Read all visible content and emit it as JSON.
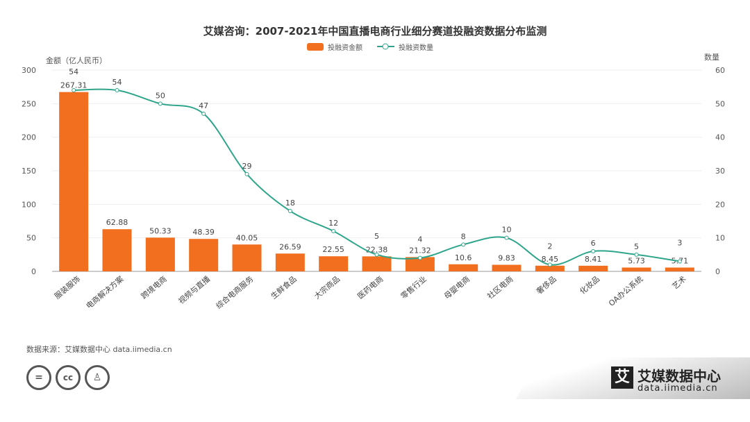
{
  "chart_data": {
    "type": "bar+line",
    "title": "艾媒咨询：2007-2021年中国直播电商行业细分赛道投融资数据分布监测",
    "ylabel": "金额（亿人民币）",
    "y2label": "数量",
    "ylim": [
      0,
      300
    ],
    "y2lim": [
      0,
      60
    ],
    "yticks": [
      0,
      50,
      100,
      150,
      200,
      250,
      300
    ],
    "y2ticks": [
      0,
      10,
      20,
      30,
      40,
      50,
      60
    ],
    "grid": true,
    "legend": "top-center",
    "categories": [
      "服装服饰",
      "电商解决方案",
      "跨境电商",
      "视频与直播",
      "综合电商服务",
      "生鲜食品",
      "大宗商品",
      "医药电商",
      "零售行业",
      "母婴电商",
      "社区电商",
      "奢侈品",
      "化妆品",
      "OA办公系统",
      "艺术"
    ],
    "series": [
      {
        "name": "投融资金额",
        "type": "bar",
        "color": "#f26f1f",
        "values": [
          267.31,
          62.88,
          50.33,
          48.39,
          40.05,
          26.59,
          22.55,
          22.38,
          21.32,
          10.6,
          9.83,
          8.45,
          8.41,
          5.73,
          5.71
        ]
      },
      {
        "name": "投融资数量",
        "type": "line",
        "axis": "right",
        "color": "#2ea58a",
        "values": [
          54,
          54,
          50,
          47,
          29,
          18,
          12,
          5,
          4,
          8,
          10,
          2,
          6,
          5,
          3
        ]
      }
    ]
  },
  "footer": {
    "source": "数据来源：艾媒数据中心 data.iimedia.cn",
    "logo_name": "艾媒数据中心",
    "logo_url": "data.iimedia.cn",
    "logo_mark": "艾",
    "cc_icons": [
      "equals-icon",
      "cc-icon",
      "person-icon"
    ]
  }
}
